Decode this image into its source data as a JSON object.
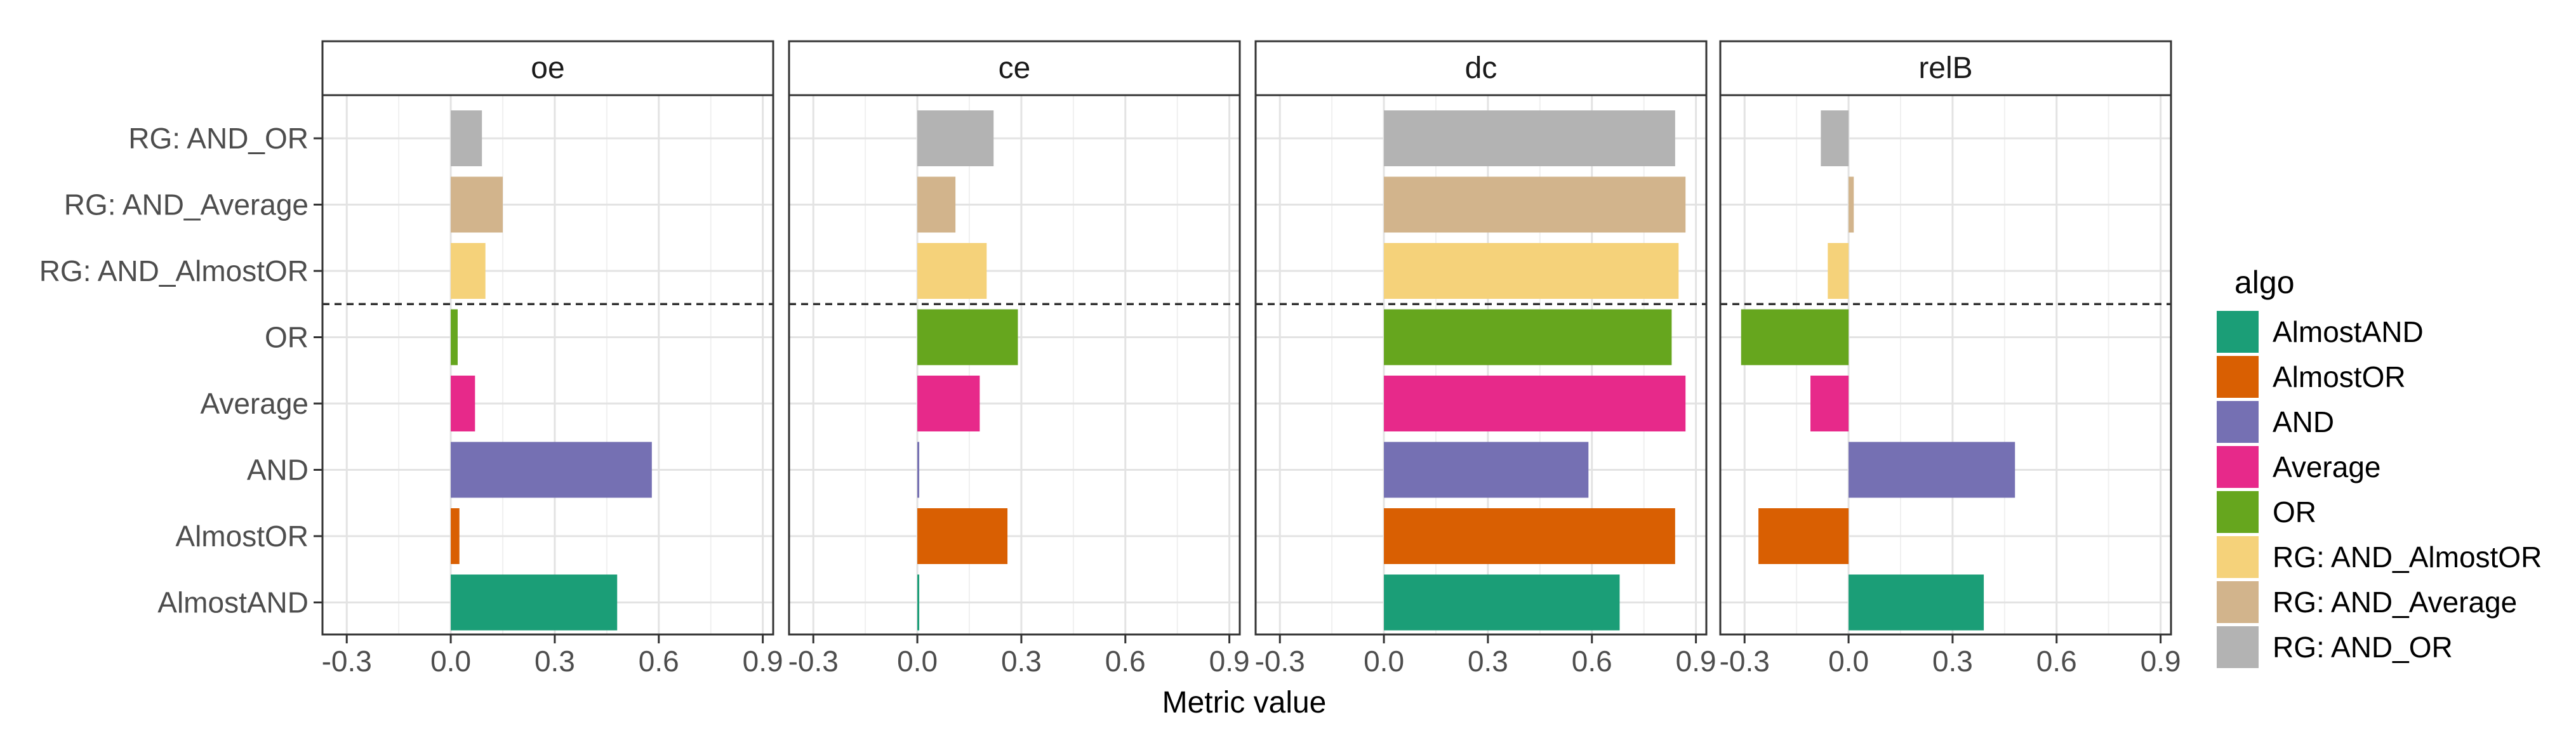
{
  "chart_data": {
    "type": "bar",
    "orientation": "horizontal",
    "xlabel": "Metric value",
    "xlim": [
      -0.37,
      0.93
    ],
    "xticks": [
      -0.3,
      0.0,
      0.3,
      0.6,
      0.9
    ],
    "xtick_labels": [
      "-0.3",
      "0.0",
      "0.3",
      "0.6",
      "0.9"
    ],
    "grid": true,
    "separator": {
      "style": "dashed",
      "between": [
        "OR",
        "RG: AND_AlmostOR"
      ]
    },
    "categories": [
      "RG: AND_OR",
      "RG: AND_Average",
      "RG: AND_AlmostOR",
      "OR",
      "Average",
      "AND",
      "AlmostOR",
      "AlmostAND"
    ],
    "legend": {
      "title": "algo",
      "placement": "right",
      "items": [
        {
          "label": "AlmostAND",
          "color": "#1B9E77"
        },
        {
          "label": "AlmostOR",
          "color": "#D95F02"
        },
        {
          "label": "AND",
          "color": "#7570B3"
        },
        {
          "label": "Average",
          "color": "#E7298A"
        },
        {
          "label": "OR",
          "color": "#66A61E"
        },
        {
          "label": "RG: AND_AlmostOR",
          "color": "#F5D27A"
        },
        {
          "label": "RG: AND_Average",
          "color": "#D2B48C"
        },
        {
          "label": "RG: AND_OR",
          "color": "#B3B3B3"
        }
      ]
    },
    "panels": [
      {
        "title": "oe",
        "values": [
          0.09,
          0.15,
          0.1,
          0.02,
          0.07,
          0.58,
          0.025,
          0.48
        ]
      },
      {
        "title": "ce",
        "values": [
          0.22,
          0.11,
          0.2,
          0.29,
          0.18,
          0.0,
          0.26,
          0.005
        ]
      },
      {
        "title": "dc",
        "values": [
          0.84,
          0.87,
          0.85,
          0.83,
          0.87,
          0.59,
          0.84,
          0.68
        ]
      },
      {
        "title": "relB",
        "values": [
          -0.08,
          0.015,
          -0.06,
          -0.31,
          -0.11,
          0.48,
          -0.26,
          0.39
        ]
      }
    ]
  }
}
